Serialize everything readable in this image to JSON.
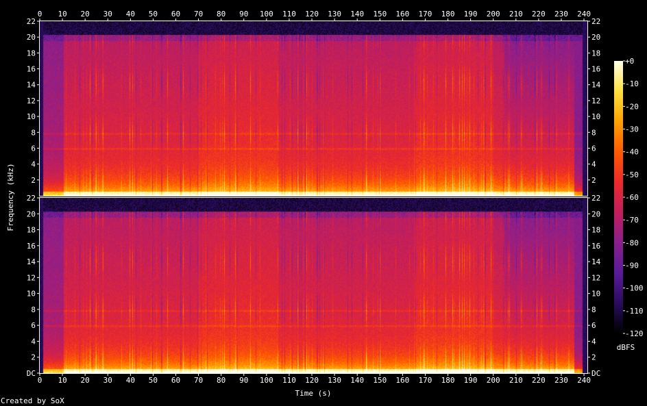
{
  "chart_data": {
    "type": "heatmap",
    "xlabel": "Time (s)",
    "ylabel": "Frequency (kHz)",
    "xlim": [
      0,
      241.5
    ],
    "ylim": [
      0,
      22
    ],
    "x_ticks": [
      0,
      10,
      20,
      30,
      40,
      50,
      60,
      70,
      80,
      90,
      100,
      110,
      120,
      130,
      140,
      150,
      160,
      170,
      180,
      190,
      200,
      210,
      220,
      230,
      240
    ],
    "y_ticks_top": [
      {
        "v": 2,
        "label": "2"
      },
      {
        "v": 4,
        "label": "4"
      },
      {
        "v": 6,
        "label": "6"
      },
      {
        "v": 8,
        "label": "8"
      },
      {
        "v": 10,
        "label": "10"
      },
      {
        "v": 12,
        "label": "12"
      },
      {
        "v": 14,
        "label": "14"
      },
      {
        "v": 16,
        "label": "16"
      },
      {
        "v": 18,
        "label": "18"
      },
      {
        "v": 20,
        "label": "20"
      },
      {
        "v": 22,
        "label": "22"
      }
    ],
    "y_ticks_bottom": [
      {
        "v": 0,
        "label": "DC"
      },
      {
        "v": 2,
        "label": "2"
      },
      {
        "v": 4,
        "label": "4"
      },
      {
        "v": 6,
        "label": "6"
      },
      {
        "v": 8,
        "label": "8"
      },
      {
        "v": 10,
        "label": "10"
      },
      {
        "v": 12,
        "label": "12"
      },
      {
        "v": 14,
        "label": "14"
      },
      {
        "v": 16,
        "label": "16"
      },
      {
        "v": 18,
        "label": "18"
      },
      {
        "v": 20,
        "label": "20"
      },
      {
        "v": 22,
        "label": "22"
      }
    ],
    "channels": 2,
    "colorbar": {
      "unit": "dBFS",
      "range": [
        -120,
        0
      ],
      "ticks": [
        "+0",
        "-10",
        "-20",
        "-30",
        "-40",
        "-50",
        "-60",
        "-70",
        "-80",
        "-90",
        "-100",
        "-110",
        "-120"
      ],
      "colors": [
        "#000000",
        "#2a0c5e",
        "#5a1a9a",
        "#8a1f8c",
        "#c21e5c",
        "#ec2a2a",
        "#ff5a00",
        "#ffa200",
        "#ffe040",
        "#ffffe8"
      ]
    },
    "credit": "Created by SoX"
  }
}
